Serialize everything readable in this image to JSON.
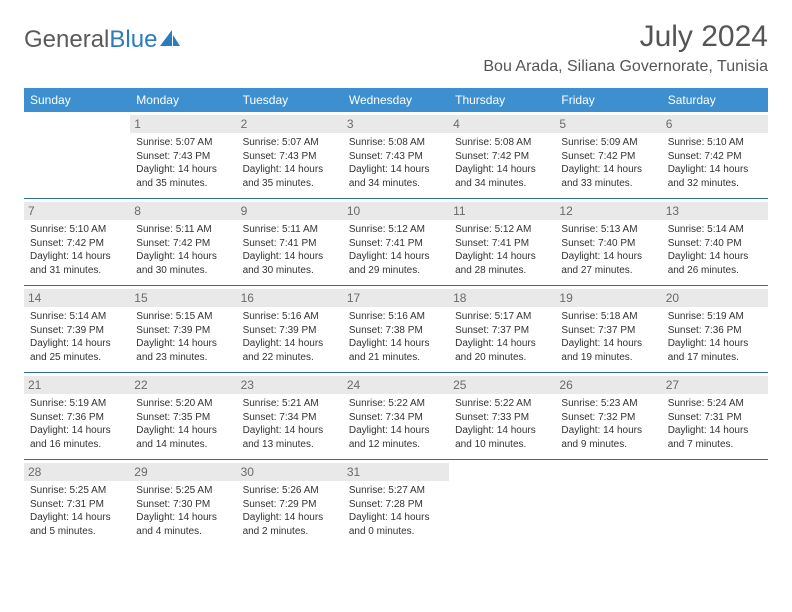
{
  "logo": {
    "text1": "General",
    "text2": "Blue"
  },
  "title": "July 2024",
  "location": "Bou Arada, Siliana Governorate, Tunisia",
  "colors": {
    "header_bg": "#3d8fcf",
    "header_text": "#ffffff",
    "daynum_bg": "#e9e9e9",
    "daynum_text": "#6a6a6a",
    "cell_border": "#2f6ea0",
    "body_text": "#333333",
    "title_text": "#555555",
    "logo_gray": "#5a5a5a",
    "logo_blue": "#2b7bbf"
  },
  "weekdays": [
    "Sunday",
    "Monday",
    "Tuesday",
    "Wednesday",
    "Thursday",
    "Friday",
    "Saturday"
  ],
  "weeks": [
    [
      null,
      {
        "day": "1",
        "sunrise": "Sunrise: 5:07 AM",
        "sunset": "Sunset: 7:43 PM",
        "daylight": "Daylight: 14 hours and 35 minutes."
      },
      {
        "day": "2",
        "sunrise": "Sunrise: 5:07 AM",
        "sunset": "Sunset: 7:43 PM",
        "daylight": "Daylight: 14 hours and 35 minutes."
      },
      {
        "day": "3",
        "sunrise": "Sunrise: 5:08 AM",
        "sunset": "Sunset: 7:43 PM",
        "daylight": "Daylight: 14 hours and 34 minutes."
      },
      {
        "day": "4",
        "sunrise": "Sunrise: 5:08 AM",
        "sunset": "Sunset: 7:42 PM",
        "daylight": "Daylight: 14 hours and 34 minutes."
      },
      {
        "day": "5",
        "sunrise": "Sunrise: 5:09 AM",
        "sunset": "Sunset: 7:42 PM",
        "daylight": "Daylight: 14 hours and 33 minutes."
      },
      {
        "day": "6",
        "sunrise": "Sunrise: 5:10 AM",
        "sunset": "Sunset: 7:42 PM",
        "daylight": "Daylight: 14 hours and 32 minutes."
      }
    ],
    [
      {
        "day": "7",
        "sunrise": "Sunrise: 5:10 AM",
        "sunset": "Sunset: 7:42 PM",
        "daylight": "Daylight: 14 hours and 31 minutes."
      },
      {
        "day": "8",
        "sunrise": "Sunrise: 5:11 AM",
        "sunset": "Sunset: 7:42 PM",
        "daylight": "Daylight: 14 hours and 30 minutes."
      },
      {
        "day": "9",
        "sunrise": "Sunrise: 5:11 AM",
        "sunset": "Sunset: 7:41 PM",
        "daylight": "Daylight: 14 hours and 30 minutes."
      },
      {
        "day": "10",
        "sunrise": "Sunrise: 5:12 AM",
        "sunset": "Sunset: 7:41 PM",
        "daylight": "Daylight: 14 hours and 29 minutes."
      },
      {
        "day": "11",
        "sunrise": "Sunrise: 5:12 AM",
        "sunset": "Sunset: 7:41 PM",
        "daylight": "Daylight: 14 hours and 28 minutes."
      },
      {
        "day": "12",
        "sunrise": "Sunrise: 5:13 AM",
        "sunset": "Sunset: 7:40 PM",
        "daylight": "Daylight: 14 hours and 27 minutes."
      },
      {
        "day": "13",
        "sunrise": "Sunrise: 5:14 AM",
        "sunset": "Sunset: 7:40 PM",
        "daylight": "Daylight: 14 hours and 26 minutes."
      }
    ],
    [
      {
        "day": "14",
        "sunrise": "Sunrise: 5:14 AM",
        "sunset": "Sunset: 7:39 PM",
        "daylight": "Daylight: 14 hours and 25 minutes."
      },
      {
        "day": "15",
        "sunrise": "Sunrise: 5:15 AM",
        "sunset": "Sunset: 7:39 PM",
        "daylight": "Daylight: 14 hours and 23 minutes."
      },
      {
        "day": "16",
        "sunrise": "Sunrise: 5:16 AM",
        "sunset": "Sunset: 7:39 PM",
        "daylight": "Daylight: 14 hours and 22 minutes."
      },
      {
        "day": "17",
        "sunrise": "Sunrise: 5:16 AM",
        "sunset": "Sunset: 7:38 PM",
        "daylight": "Daylight: 14 hours and 21 minutes."
      },
      {
        "day": "18",
        "sunrise": "Sunrise: 5:17 AM",
        "sunset": "Sunset: 7:37 PM",
        "daylight": "Daylight: 14 hours and 20 minutes."
      },
      {
        "day": "19",
        "sunrise": "Sunrise: 5:18 AM",
        "sunset": "Sunset: 7:37 PM",
        "daylight": "Daylight: 14 hours and 19 minutes."
      },
      {
        "day": "20",
        "sunrise": "Sunrise: 5:19 AM",
        "sunset": "Sunset: 7:36 PM",
        "daylight": "Daylight: 14 hours and 17 minutes."
      }
    ],
    [
      {
        "day": "21",
        "sunrise": "Sunrise: 5:19 AM",
        "sunset": "Sunset: 7:36 PM",
        "daylight": "Daylight: 14 hours and 16 minutes."
      },
      {
        "day": "22",
        "sunrise": "Sunrise: 5:20 AM",
        "sunset": "Sunset: 7:35 PM",
        "daylight": "Daylight: 14 hours and 14 minutes."
      },
      {
        "day": "23",
        "sunrise": "Sunrise: 5:21 AM",
        "sunset": "Sunset: 7:34 PM",
        "daylight": "Daylight: 14 hours and 13 minutes."
      },
      {
        "day": "24",
        "sunrise": "Sunrise: 5:22 AM",
        "sunset": "Sunset: 7:34 PM",
        "daylight": "Daylight: 14 hours and 12 minutes."
      },
      {
        "day": "25",
        "sunrise": "Sunrise: 5:22 AM",
        "sunset": "Sunset: 7:33 PM",
        "daylight": "Daylight: 14 hours and 10 minutes."
      },
      {
        "day": "26",
        "sunrise": "Sunrise: 5:23 AM",
        "sunset": "Sunset: 7:32 PM",
        "daylight": "Daylight: 14 hours and 9 minutes."
      },
      {
        "day": "27",
        "sunrise": "Sunrise: 5:24 AM",
        "sunset": "Sunset: 7:31 PM",
        "daylight": "Daylight: 14 hours and 7 minutes."
      }
    ],
    [
      {
        "day": "28",
        "sunrise": "Sunrise: 5:25 AM",
        "sunset": "Sunset: 7:31 PM",
        "daylight": "Daylight: 14 hours and 5 minutes."
      },
      {
        "day": "29",
        "sunrise": "Sunrise: 5:25 AM",
        "sunset": "Sunset: 7:30 PM",
        "daylight": "Daylight: 14 hours and 4 minutes."
      },
      {
        "day": "30",
        "sunrise": "Sunrise: 5:26 AM",
        "sunset": "Sunset: 7:29 PM",
        "daylight": "Daylight: 14 hours and 2 minutes."
      },
      {
        "day": "31",
        "sunrise": "Sunrise: 5:27 AM",
        "sunset": "Sunset: 7:28 PM",
        "daylight": "Daylight: 14 hours and 0 minutes."
      },
      null,
      null,
      null
    ]
  ]
}
